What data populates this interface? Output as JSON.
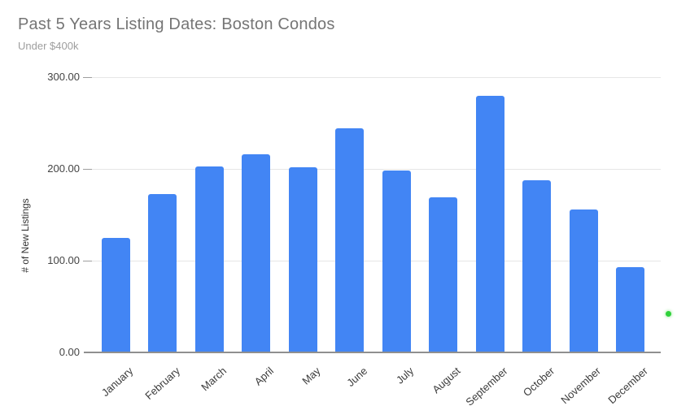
{
  "chart_data": {
    "type": "bar",
    "title": "Past 5 Years Listing Dates: Boston Condos",
    "subtitle": "Under $400k",
    "categories": [
      "January",
      "February",
      "March",
      "April",
      "May",
      "June",
      "July",
      "August",
      "September",
      "October",
      "November",
      "December"
    ],
    "values": [
      125,
      173,
      203,
      216,
      202,
      244,
      198,
      169,
      280,
      188,
      156,
      93
    ],
    "xlabel": "",
    "ylabel": "# of New Listings",
    "ylim": [
      0,
      300
    ],
    "yticks": [
      0,
      100,
      200,
      300
    ],
    "ytick_labels": [
      "0.00",
      "100.00",
      "200.00",
      "300.00"
    ],
    "grid": true,
    "legend": "none",
    "x_label_rotation_deg": 42,
    "colors": {
      "bar": "#4285f4",
      "title": "#757575",
      "subtitle": "#9e9e9e",
      "axis_text": "#444444",
      "axis_line": "#8f8f8f",
      "gridline": "#e6e6e6",
      "green_dot": "#2fd13a"
    }
  }
}
